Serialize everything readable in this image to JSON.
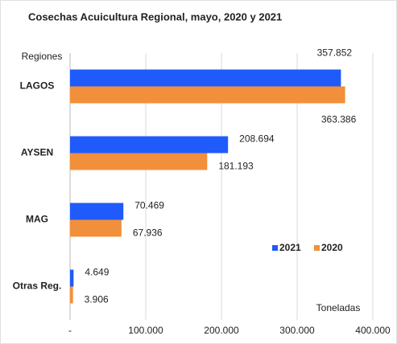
{
  "chart_data": {
    "type": "barh",
    "title": "Cosechas Acuicultura Regional, mayo,  2020 y 2021",
    "y_label": "Regiones",
    "x_label": "Toneladas",
    "categories": [
      "LAGOS",
      "AYSEN",
      "MAG",
      "Otras Reg."
    ],
    "series": [
      {
        "name": "2021",
        "color": "#1f5bfb",
        "values": [
          357852,
          208694,
          70469,
          4649
        ],
        "value_labels": [
          "357.852",
          "208.694",
          "70.469",
          "4.649"
        ]
      },
      {
        "name": "2020",
        "color": "#f28f3b",
        "values": [
          363386,
          181193,
          67936,
          3906
        ],
        "value_labels": [
          "363.386",
          "181.193",
          "67.936",
          "3.906"
        ]
      }
    ],
    "xlim": [
      0,
      400000
    ],
    "xticks": [
      {
        "value": 0,
        "label": "-"
      },
      {
        "value": 100000,
        "label": "100.000"
      },
      {
        "value": 200000,
        "label": "200.000"
      },
      {
        "value": 300000,
        "label": "300.000"
      },
      {
        "value": 400000,
        "label": "400.000"
      }
    ],
    "grid": true
  }
}
